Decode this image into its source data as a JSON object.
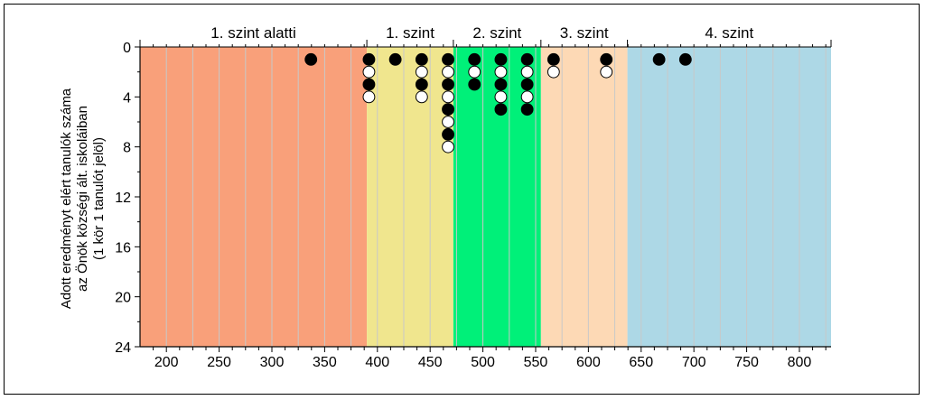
{
  "chart_data": {
    "type": "scatter",
    "band_labels": [
      {
        "label": "1. szint alatti",
        "start": 175,
        "end": 390
      },
      {
        "label": "1. szint",
        "start": 390,
        "end": 472
      },
      {
        "label": "2. szint",
        "start": 472,
        "end": 555
      },
      {
        "label": "3. szint",
        "start": 555,
        "end": 637
      },
      {
        "label": "4. szint",
        "start": 637,
        "end": 830
      }
    ],
    "band_colors": [
      "#f9a07a",
      "#f0e68e",
      "#00f079",
      "#fdd9b5",
      "#add8e6"
    ],
    "xlim": [
      175,
      830
    ],
    "ylim": [
      0,
      24
    ],
    "x_ticks": [
      200,
      250,
      300,
      350,
      400,
      450,
      500,
      550,
      600,
      650,
      700,
      750,
      800
    ],
    "y_ticks": [
      0,
      4,
      8,
      12,
      16,
      20,
      24
    ],
    "ylabel_lines": [
      "Adott eredményt elért tanulók száma",
      "az Önök községi ált. iskoláiban",
      "(1 kör 1 tanulót jelöl)"
    ],
    "dots": [
      {
        "x": 337,
        "y": 1,
        "fill": "black"
      },
      {
        "x": 392,
        "y": 1,
        "fill": "black"
      },
      {
        "x": 392,
        "y": 2,
        "fill": "white"
      },
      {
        "x": 392,
        "y": 3,
        "fill": "black"
      },
      {
        "x": 392,
        "y": 4,
        "fill": "white"
      },
      {
        "x": 417,
        "y": 1,
        "fill": "black"
      },
      {
        "x": 442,
        "y": 1,
        "fill": "black"
      },
      {
        "x": 442,
        "y": 2,
        "fill": "white"
      },
      {
        "x": 442,
        "y": 3,
        "fill": "black"
      },
      {
        "x": 442,
        "y": 4,
        "fill": "white"
      },
      {
        "x": 467,
        "y": 1,
        "fill": "black"
      },
      {
        "x": 467,
        "y": 2,
        "fill": "white"
      },
      {
        "x": 467,
        "y": 3,
        "fill": "black"
      },
      {
        "x": 467,
        "y": 4,
        "fill": "white"
      },
      {
        "x": 467,
        "y": 5,
        "fill": "black"
      },
      {
        "x": 467,
        "y": 6,
        "fill": "white"
      },
      {
        "x": 467,
        "y": 7,
        "fill": "black"
      },
      {
        "x": 467,
        "y": 8,
        "fill": "white"
      },
      {
        "x": 492,
        "y": 1,
        "fill": "black"
      },
      {
        "x": 492,
        "y": 2,
        "fill": "white"
      },
      {
        "x": 492,
        "y": 3,
        "fill": "black"
      },
      {
        "x": 517,
        "y": 1,
        "fill": "black"
      },
      {
        "x": 517,
        "y": 2,
        "fill": "white"
      },
      {
        "x": 517,
        "y": 3,
        "fill": "black"
      },
      {
        "x": 517,
        "y": 4,
        "fill": "white"
      },
      {
        "x": 517,
        "y": 5,
        "fill": "black"
      },
      {
        "x": 542,
        "y": 1,
        "fill": "black"
      },
      {
        "x": 542,
        "y": 2,
        "fill": "white"
      },
      {
        "x": 542,
        "y": 3,
        "fill": "black"
      },
      {
        "x": 542,
        "y": 4,
        "fill": "white"
      },
      {
        "x": 542,
        "y": 5,
        "fill": "black"
      },
      {
        "x": 567,
        "y": 1,
        "fill": "black"
      },
      {
        "x": 567,
        "y": 2,
        "fill": "white"
      },
      {
        "x": 617,
        "y": 1,
        "fill": "black"
      },
      {
        "x": 617,
        "y": 2,
        "fill": "white"
      },
      {
        "x": 667,
        "y": 1,
        "fill": "black"
      },
      {
        "x": 692,
        "y": 1,
        "fill": "black"
      }
    ]
  }
}
